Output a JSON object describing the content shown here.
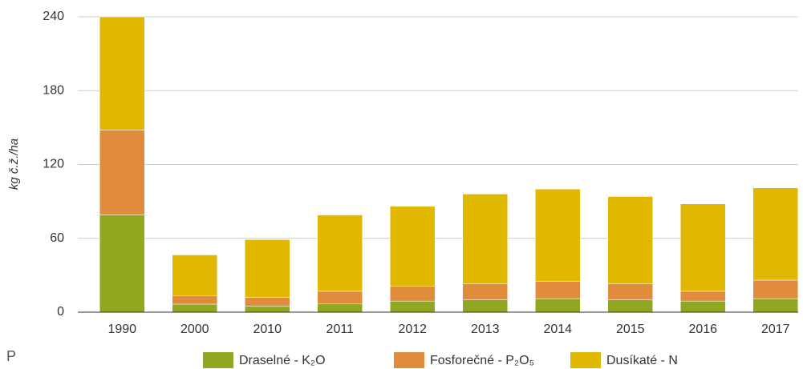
{
  "chart_data": {
    "type": "stacked_bar",
    "y_label": "kg č.ž./ha",
    "categories": [
      "1990",
      "2000",
      "2010",
      "2011",
      "2012",
      "2013",
      "2014",
      "2015",
      "2016",
      "2017"
    ],
    "series": [
      {
        "name": "Draselné - K₂O",
        "color": "#8fa81f",
        "values": [
          79,
          6.5,
          5,
          7,
          9,
          10,
          11,
          10,
          9,
          11
        ]
      },
      {
        "name": "Fosforečné - P₂O₅",
        "color": "#e08c3c",
        "values": [
          69,
          7,
          7,
          10,
          12,
          13,
          14,
          13,
          8,
          15
        ]
      },
      {
        "name": "Dusíkaté - N",
        "color": "#e0b800",
        "values": [
          92,
          33,
          47,
          62,
          65,
          73,
          75,
          71,
          71,
          75
        ]
      }
    ],
    "ylim": [
      0,
      240
    ],
    "yticks": [
      0,
      60,
      120,
      180,
      240
    ],
    "grid": true,
    "footnote": "P"
  }
}
